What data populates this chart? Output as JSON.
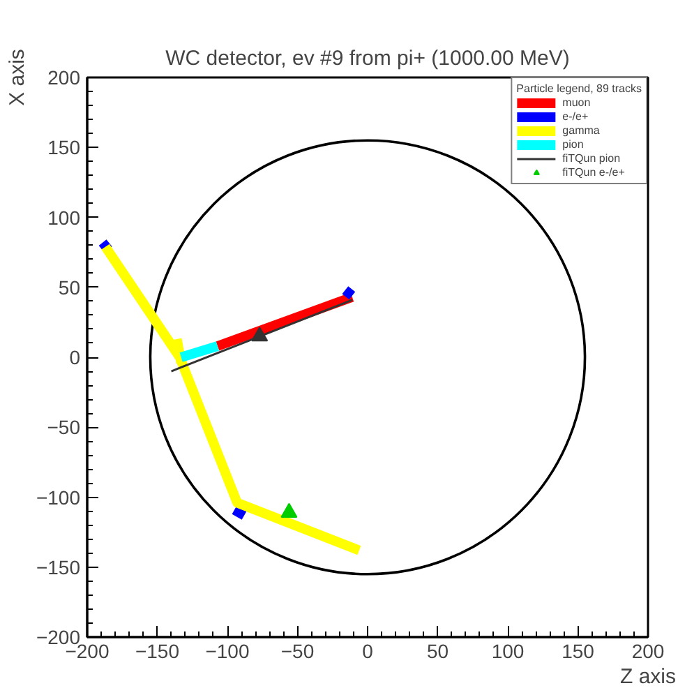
{
  "chart_data": {
    "type": "line",
    "title": "WC detector, ev #9 from pi+ (1000.00 MeV)",
    "xlabel": "Z axis",
    "ylabel": "X axis",
    "legend_title": "Particle legend, 89 tracks",
    "xlim": [
      -200,
      200
    ],
    "ylim": [
      -200,
      200
    ],
    "xticks": [
      {
        "value": -200,
        "label": "−200"
      },
      {
        "value": -150,
        "label": "−150"
      },
      {
        "value": -100,
        "label": "−100"
      },
      {
        "value": -50,
        "label": "−50"
      },
      0,
      50,
      100,
      150,
      200
    ],
    "yticks": [
      {
        "value": -200,
        "label": "−200"
      },
      {
        "value": -150,
        "label": "−150"
      },
      {
        "value": -100,
        "label": "−100"
      },
      {
        "value": -50,
        "label": "−50"
      },
      0,
      50,
      100,
      150,
      200
    ],
    "grid": false,
    "legend": "top right",
    "marker": "none",
    "series": [
      {
        "name": "muon",
        "color": "#ff0000",
        "x": [
          -107,
          -11
        ],
        "values": [
          8,
          43
        ]
      },
      {
        "name": "e-/e+",
        "color": "#0000ff",
        "x": [
          -189,
          -185,
          null,
          -16,
          -11,
          null,
          -95,
          -88
        ],
        "values": [
          82,
          77,
          null,
          48,
          44,
          null,
          -109,
          -113
        ]
      },
      {
        "name": "gamma",
        "color": "#ffff00",
        "x": [
          -187,
          -134,
          -93,
          -6,
          null,
          -136,
          -133
        ],
        "values": [
          79,
          0,
          -104,
          -138,
          null,
          13,
          -4
        ]
      },
      {
        "name": "pion",
        "color": "#00ffff",
        "x": [
          -133,
          -107
        ],
        "values": [
          0,
          8
        ]
      },
      {
        "name": "fiTQun pion",
        "color": "#333333",
        "marker": "none",
        "x": [
          -140,
          -11
        ],
        "values": [
          -10,
          41
        ]
      },
      {
        "type": "scatter",
        "marker": "triangle",
        "color": "#333333",
        "x": [
          -77
        ],
        "values": [
          15
        ]
      },
      {
        "type": "scatter",
        "name": "fiTQun e-/e+",
        "marker": "triangle",
        "color": "#00cc00",
        "x": [
          -56
        ],
        "values": [
          -111
        ]
      }
    ]
  }
}
